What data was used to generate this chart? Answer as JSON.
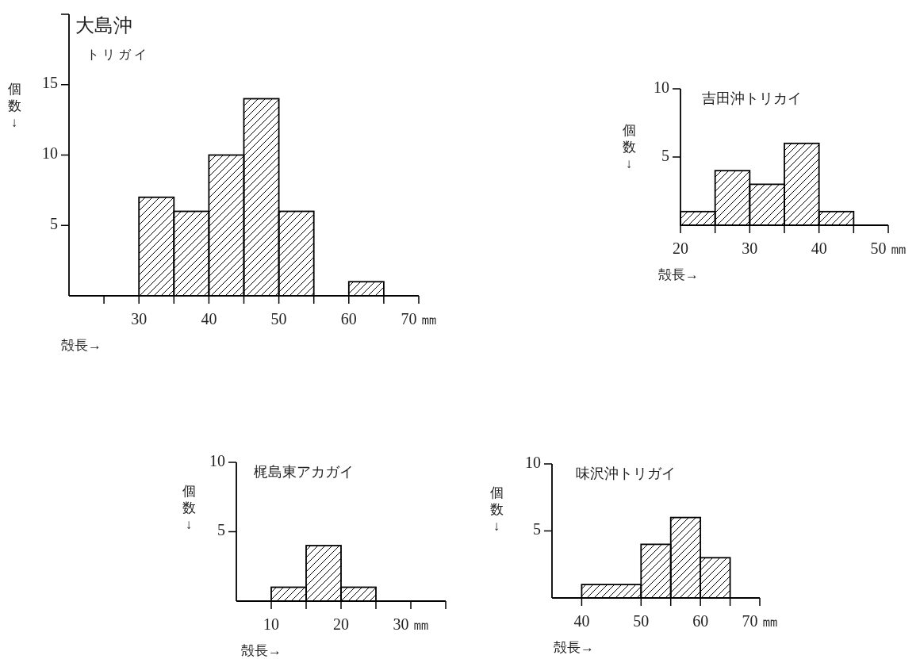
{
  "chart_data": [
    {
      "type": "histogram",
      "title": "大島沖",
      "subtitle": "トリガイ",
      "xlabel": "殻長→",
      "ylabel": "個数↓",
      "bins": [
        30,
        35,
        40,
        45,
        50,
        55,
        60,
        65
      ],
      "values": [
        7,
        6,
        10,
        14,
        6,
        0,
        1
      ],
      "color": "#000000",
      "xlim": [
        20,
        70
      ],
      "ylim": [
        0,
        20
      ],
      "xticks": [
        {
          "value": 25,
          "label": null
        },
        30,
        {
          "value": 35,
          "label": null
        },
        40,
        {
          "value": 45,
          "label": null
        },
        50,
        {
          "value": 55,
          "label": null
        },
        60,
        {
          "value": 65,
          "label": null
        },
        {
          "value": 70,
          "label": "70 ㎜"
        }
      ],
      "yticks": [
        5,
        10,
        15,
        {
          "value": 20,
          "label": null
        }
      ]
    },
    {
      "type": "histogram",
      "title": "吉田沖トリカイ",
      "xlabel": "殻長→",
      "ylabel": "個数↓",
      "bins": [
        20,
        25,
        30,
        35,
        40,
        45
      ],
      "values": [
        1,
        4,
        3,
        6,
        1
      ],
      "color": "#000000",
      "xlim": [
        20,
        50
      ],
      "ylim": [
        0,
        10
      ],
      "xticks": [
        20,
        {
          "value": 25,
          "label": null
        },
        30,
        {
          "value": 35,
          "label": null
        },
        40,
        {
          "value": 45,
          "label": null
        },
        {
          "value": 50,
          "label": "50 ㎜"
        }
      ],
      "yticks": [
        5,
        10
      ]
    },
    {
      "type": "histogram",
      "title": "梶島東アカガイ",
      "xlabel": "殻長→",
      "ylabel": "個数↓",
      "bins": [
        10,
        15,
        20,
        25
      ],
      "values": [
        1,
        4,
        1
      ],
      "color": "#000000",
      "xlim": [
        5,
        35
      ],
      "ylim": [
        0,
        10
      ],
      "xticks": [
        10,
        {
          "value": 15,
          "label": null
        },
        20,
        {
          "value": 25,
          "label": null
        },
        {
          "value": 30,
          "label": "30 ㎜"
        },
        {
          "value": 35,
          "label": null
        }
      ],
      "yticks": [
        5,
        10
      ]
    },
    {
      "type": "histogram",
      "title": "味沢沖トリガイ",
      "xlabel": "殻長→",
      "ylabel": "個数↓",
      "bins": [
        40,
        50,
        55,
        60,
        65
      ],
      "values": [
        1,
        4,
        6,
        3
      ],
      "color": "#000000",
      "xlim": [
        35,
        70
      ],
      "ylim": [
        0,
        10
      ],
      "xticks": [
        40,
        50,
        {
          "value": 55,
          "label": null
        },
        60,
        {
          "value": 65,
          "label": null
        },
        {
          "value": 70,
          "label": "70 ㎜"
        }
      ],
      "yticks": [
        5,
        10
      ]
    }
  ]
}
